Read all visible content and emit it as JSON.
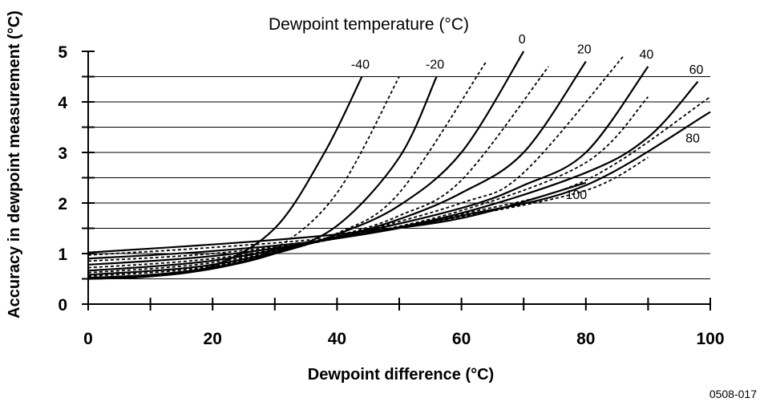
{
  "chart_data": {
    "type": "line",
    "title": "Dewpoint temperature (°C)",
    "xlabel": "Dewpoint difference  (°C)",
    "ylabel": "Accuracy in dewpoint measurement  (°C)",
    "xlim": [
      0,
      100
    ],
    "ylim": [
      0,
      5
    ],
    "x_ticks": [
      0,
      20,
      40,
      60,
      80,
      100
    ],
    "y_ticks": [
      0,
      1,
      2,
      3,
      4,
      5
    ],
    "grid": "horizontal lines at every 0.5",
    "figure_id": "0508-017",
    "series": [
      {
        "name": "-40",
        "style": "solid",
        "x": [
          0,
          10,
          20,
          30,
          38,
          44
        ],
        "y": [
          0.5,
          0.55,
          0.75,
          1.5,
          3.0,
          4.5
        ]
      },
      {
        "name": "",
        "style": "dashed",
        "x": [
          0,
          10,
          20,
          30,
          40,
          50
        ],
        "y": [
          0.5,
          0.55,
          0.75,
          1.1,
          2.2,
          4.5
        ]
      },
      {
        "name": "-20",
        "style": "solid",
        "x": [
          0,
          10,
          20,
          30,
          40,
          50,
          56
        ],
        "y": [
          0.5,
          0.55,
          0.7,
          1.0,
          1.55,
          2.9,
          4.5
        ]
      },
      {
        "name": "",
        "style": "dashed",
        "x": [
          0,
          10,
          20,
          30,
          40,
          50,
          64
        ],
        "y": [
          0.5,
          0.56,
          0.7,
          1.0,
          1.4,
          2.2,
          4.8
        ]
      },
      {
        "name": "0",
        "style": "solid",
        "x": [
          0,
          10,
          20,
          30,
          40,
          50,
          60,
          70
        ],
        "y": [
          0.52,
          0.58,
          0.72,
          1.0,
          1.38,
          1.95,
          3.0,
          5.0
        ]
      },
      {
        "name": "",
        "style": "dashed",
        "x": [
          0,
          20,
          40,
          50,
          60,
          74
        ],
        "y": [
          0.55,
          0.75,
          1.35,
          1.75,
          2.45,
          4.7
        ]
      },
      {
        "name": "20",
        "style": "solid",
        "x": [
          0,
          20,
          40,
          50,
          60,
          70,
          80
        ],
        "y": [
          0.58,
          0.78,
          1.33,
          1.68,
          2.2,
          3.0,
          4.8
        ]
      },
      {
        "name": "",
        "style": "dashed",
        "x": [
          0,
          20,
          40,
          60,
          70,
          86
        ],
        "y": [
          0.62,
          0.82,
          1.32,
          2.0,
          2.6,
          4.9
        ]
      },
      {
        "name": "40",
        "style": "solid",
        "x": [
          0,
          20,
          40,
          60,
          70,
          80,
          90
        ],
        "y": [
          0.66,
          0.86,
          1.32,
          1.9,
          2.35,
          3.0,
          4.7
        ]
      },
      {
        "name": "",
        "style": "dashed",
        "x": [
          0,
          20,
          40,
          60,
          80,
          90
        ],
        "y": [
          0.72,
          0.9,
          1.3,
          1.85,
          2.8,
          4.1
        ]
      },
      {
        "name": "60",
        "style": "solid",
        "x": [
          0,
          20,
          40,
          60,
          80,
          90,
          98
        ],
        "y": [
          0.78,
          0.95,
          1.3,
          1.8,
          2.6,
          3.3,
          4.4
        ]
      },
      {
        "name": "",
        "style": "dashed",
        "x": [
          0,
          20,
          40,
          60,
          80,
          100
        ],
        "y": [
          0.85,
          1.0,
          1.3,
          1.78,
          2.45,
          4.1
        ]
      },
      {
        "name": "80",
        "style": "solid",
        "x": [
          0,
          20,
          40,
          60,
          80,
          100
        ],
        "y": [
          0.9,
          1.05,
          1.3,
          1.75,
          2.35,
          3.8
        ]
      },
      {
        "name": "",
        "style": "dashed",
        "x": [
          0,
          20,
          40,
          60,
          80,
          90
        ],
        "y": [
          0.97,
          1.12,
          1.33,
          1.73,
          2.25,
          2.9
        ]
      },
      {
        "name": "100",
        "style": "solid",
        "x": [
          0,
          20,
          40,
          60,
          80
        ],
        "y": [
          1.02,
          1.18,
          1.38,
          1.7,
          2.4
        ]
      }
    ]
  }
}
